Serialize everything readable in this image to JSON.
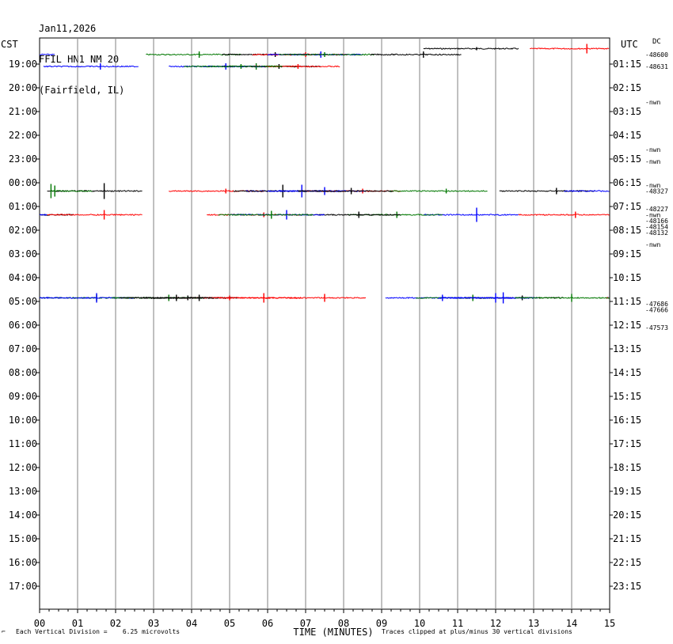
{
  "header": {
    "date": "Jan11,2026",
    "station": "FFIL HN1 NM 20",
    "location": "(Fairfield, IL)"
  },
  "labels": {
    "left_tz": "CST",
    "right_tz": "UTC",
    "offset_label": "DC",
    "corner_mark": "⌐"
  },
  "footer": {
    "scale_note": "Each Vertical Division =    6.25 microvolts",
    "clip_note": "Traces clipped at plus/minus 30 vertical divisions"
  },
  "chart_data": {
    "type": "line",
    "title": "Jan11,2026 FFIL HN1 NM 20 (Fairfield, IL)",
    "xlabel": "TIME (MINUTES)",
    "ylabel": "",
    "x_ticks": [
      "00",
      "01",
      "02",
      "03",
      "04",
      "05",
      "06",
      "07",
      "08",
      "09",
      "10",
      "11",
      "12",
      "13",
      "14",
      "15"
    ],
    "xlim": [
      0,
      15
    ],
    "left_labels": [
      "19:00",
      "20:00",
      "21:00",
      "22:00",
      "23:00",
      "00:00",
      "01:00",
      "02:00",
      "03:00",
      "04:00",
      "05:00",
      "06:00",
      "07:00",
      "08:00",
      "09:00",
      "10:00",
      "11:00",
      "12:00",
      "13:00",
      "14:00",
      "15:00",
      "16:00",
      "17:00"
    ],
    "right_labels": [
      "01:15",
      "02:15",
      "03:15",
      "04:15",
      "05:15",
      "06:15",
      "07:15",
      "08:15",
      "09:15",
      "10:15",
      "11:15",
      "12:15",
      "13:15",
      "14:15",
      "15:15",
      "16:15",
      "17:15",
      "18:15",
      "19:15",
      "20:15",
      "21:15",
      "22:15",
      "23:15"
    ],
    "dc_labels": [
      {
        "row": 0,
        "text": "-48600"
      },
      {
        "row": 2,
        "text": "-48631"
      },
      {
        "row": 8,
        "text": "-nwn"
      },
      {
        "row": 16,
        "text": "-nwn"
      },
      {
        "row": 18,
        "text": "-nwn"
      },
      {
        "row": 22,
        "text": "-nwn"
      },
      {
        "row": 23,
        "text": "-48327"
      },
      {
        "row": 26,
        "text": "-48227"
      },
      {
        "row": 27,
        "text": "-nwn"
      },
      {
        "row": 28,
        "text": "-48166"
      },
      {
        "row": 29,
        "text": "-48154"
      },
      {
        "row": 30,
        "text": "-48132"
      },
      {
        "row": 32,
        "text": "-nwn"
      },
      {
        "row": 42,
        "text": "-47686"
      },
      {
        "row": 43,
        "text": "-47666"
      },
      {
        "row": 46,
        "text": "-47573"
      }
    ],
    "grid": true,
    "colors": [
      "#000000",
      "#ff0000",
      "#0000ff",
      "#007700"
    ],
    "traces": [
      {
        "row": -1,
        "color": "#000000",
        "x0": 10.1,
        "x1": 12.6,
        "spikes": [
          {
            "x": 11.5,
            "a": 2
          }
        ]
      },
      {
        "row": -1,
        "color": "#ff0000",
        "x0": 12.9,
        "x1": 15.0,
        "spikes": [
          {
            "x": 14.4,
            "a": 6
          }
        ]
      },
      {
        "row": 0,
        "color": "#0000ff",
        "x0": 0.0,
        "x1": 0.4,
        "spikes": []
      },
      {
        "row": 0,
        "color": "#007700",
        "x0": 2.8,
        "x1": 5.3,
        "spikes": [
          {
            "x": 4.2,
            "a": 4
          }
        ]
      },
      {
        "row": 0,
        "color": "#000000",
        "x0": 4.8,
        "x1": 7.3,
        "spikes": [
          {
            "x": 6.2,
            "a": 3
          }
        ]
      },
      {
        "row": 0,
        "color": "#ff0000",
        "x0": 5.6,
        "x1": 8.1,
        "spikes": [
          {
            "x": 7.0,
            "a": 3
          }
        ]
      },
      {
        "row": 0,
        "color": "#0000ff",
        "x0": 6.0,
        "x1": 8.5,
        "spikes": [
          {
            "x": 7.4,
            "a": 4
          }
        ]
      },
      {
        "row": 0,
        "color": "#007700",
        "x0": 6.3,
        "x1": 8.8,
        "spikes": [
          {
            "x": 7.5,
            "a": 3
          }
        ]
      },
      {
        "row": 0,
        "color": "#000000",
        "x0": 8.7,
        "x1": 11.1,
        "spikes": [
          {
            "x": 10.1,
            "a": 4
          }
        ]
      },
      {
        "row": 2,
        "color": "#0000ff",
        "x0": 0.1,
        "x1": 2.6,
        "spikes": [
          {
            "x": 1.6,
            "a": 4
          }
        ]
      },
      {
        "row": 2,
        "color": "#007700",
        "x0": 4.3,
        "x1": 6.8,
        "spikes": [
          {
            "x": 5.7,
            "a": 4
          }
        ]
      },
      {
        "row": 2,
        "color": "#000000",
        "x0": 4.8,
        "x1": 7.4,
        "spikes": [
          {
            "x": 6.3,
            "a": 3
          }
        ]
      },
      {
        "row": 2,
        "color": "#ff0000",
        "x0": 5.4,
        "x1": 7.9,
        "spikes": [
          {
            "x": 6.8,
            "a": 3
          }
        ]
      },
      {
        "row": 2,
        "color": "#0000ff",
        "x0": 3.4,
        "x1": 6.0,
        "spikes": [
          {
            "x": 4.9,
            "a": 4
          }
        ]
      },
      {
        "row": 2,
        "color": "#007700",
        "x0": 3.8,
        "x1": 6.4,
        "spikes": [
          {
            "x": 5.3,
            "a": 3
          }
        ]
      },
      {
        "row": 23,
        "color": "#000000",
        "x0": 0.2,
        "x1": 2.7,
        "spikes": [
          {
            "x": 1.7,
            "a": 10
          }
        ]
      },
      {
        "row": 23,
        "color": "#ff0000",
        "x0": 3.4,
        "x1": 5.9,
        "spikes": [
          {
            "x": 4.9,
            "a": 3
          }
        ]
      },
      {
        "row": 23,
        "color": "#0000ff",
        "x0": 5.4,
        "x1": 7.9,
        "spikes": [
          {
            "x": 6.9,
            "a": 8
          }
        ]
      },
      {
        "row": 23,
        "color": "#000000",
        "x0": 5.1,
        "x1": 7.6,
        "spikes": [
          {
            "x": 6.4,
            "a": 8
          }
        ]
      },
      {
        "row": 23,
        "color": "#ff0000",
        "x0": 7.0,
        "x1": 9.5,
        "spikes": [
          {
            "x": 8.5,
            "a": 3
          }
        ]
      },
      {
        "row": 23,
        "color": "#0000ff",
        "x0": 6.0,
        "x1": 8.6,
        "spikes": [
          {
            "x": 7.5,
            "a": 5
          }
        ]
      },
      {
        "row": 23,
        "color": "#007700",
        "x0": 0.3,
        "x1": 1.4,
        "spikes": [
          {
            "x": 0.3,
            "a": 9
          },
          {
            "x": 0.4,
            "a": 7
          }
        ]
      },
      {
        "row": 23,
        "color": "#007700",
        "x0": 9.2,
        "x1": 11.8,
        "spikes": [
          {
            "x": 10.7,
            "a": 3
          }
        ]
      },
      {
        "row": 23,
        "color": "#000000",
        "x0": 6.8,
        "x1": 9.3,
        "spikes": [
          {
            "x": 8.2,
            "a": 4
          }
        ]
      },
      {
        "row": 23,
        "color": "#000000",
        "x0": 12.1,
        "x1": 14.6,
        "spikes": [
          {
            "x": 13.6,
            "a": 4
          }
        ]
      },
      {
        "row": 23,
        "color": "#0000ff",
        "x0": 13.8,
        "x1": 15.0,
        "spikes": []
      },
      {
        "row": 27,
        "color": "#000000",
        "x0": 0.0,
        "x1": 0.9,
        "spikes": []
      },
      {
        "row": 27,
        "color": "#ff0000",
        "x0": 0.2,
        "x1": 2.7,
        "spikes": [
          {
            "x": 1.7,
            "a": 6
          }
        ]
      },
      {
        "row": 27,
        "color": "#0000ff",
        "x0": 0.0,
        "x1": 0.2,
        "spikes": []
      },
      {
        "row": 27,
        "color": "#0000ff",
        "x0": 10.1,
        "x1": 12.6,
        "spikes": [
          {
            "x": 11.5,
            "a": 9
          }
        ]
      },
      {
        "row": 27,
        "color": "#ff0000",
        "x0": 12.6,
        "x1": 15.0,
        "spikes": [
          {
            "x": 14.1,
            "a": 4
          }
        ]
      },
      {
        "row": 27,
        "color": "#007700",
        "x0": 8.1,
        "x1": 10.6,
        "spikes": [
          {
            "x": 9.4,
            "a": 4
          }
        ]
      },
      {
        "row": 27,
        "color": "#000000",
        "x0": 7.0,
        "x1": 9.5,
        "spikes": [
          {
            "x": 8.4,
            "a": 4
          }
        ]
      },
      {
        "row": 27,
        "color": "#ff0000",
        "x0": 4.4,
        "x1": 6.9,
        "spikes": [
          {
            "x": 5.9,
            "a": 3
          }
        ]
      },
      {
        "row": 27,
        "color": "#0000ff",
        "x0": 5.0,
        "x1": 7.5,
        "spikes": [
          {
            "x": 6.5,
            "a": 6
          }
        ]
      },
      {
        "row": 27,
        "color": "#007700",
        "x0": 4.7,
        "x1": 7.2,
        "spikes": [
          {
            "x": 6.1,
            "a": 5
          }
        ]
      },
      {
        "row": 41,
        "color": "#0000ff",
        "x0": 0.0,
        "x1": 0.6,
        "spikes": []
      },
      {
        "row": 41,
        "color": "#0000ff",
        "x0": 14.9,
        "x1": 15.0,
        "spikes": []
      },
      {
        "row": 41,
        "color": "#007700",
        "x0": 0.0,
        "x1": 2.5,
        "spikes": [
          {
            "x": 1.5,
            "a": 4
          }
        ]
      },
      {
        "row": 41,
        "color": "#000000",
        "x0": 2.4,
        "x1": 4.9,
        "spikes": [
          {
            "x": 3.9,
            "a": 3
          }
        ]
      },
      {
        "row": 41,
        "color": "#ff0000",
        "x0": 3.6,
        "x1": 6.1,
        "spikes": [
          {
            "x": 5.0,
            "a": 3
          }
        ]
      },
      {
        "row": 41,
        "color": "#0000ff",
        "x0": 9.1,
        "x1": 11.6,
        "spikes": [
          {
            "x": 10.6,
            "a": 4
          }
        ]
      },
      {
        "row": 41,
        "color": "#007700",
        "x0": 9.9,
        "x1": 12.4,
        "spikes": [
          {
            "x": 11.4,
            "a": 4
          }
        ]
      },
      {
        "row": 41,
        "color": "#000000",
        "x0": 11.2,
        "x1": 13.8,
        "spikes": [
          {
            "x": 12.7,
            "a": 3
          }
        ]
      },
      {
        "row": 41,
        "color": "#ff0000",
        "x0": 14.9,
        "x1": 15.0,
        "spikes": []
      },
      {
        "row": 41,
        "color": "#0000ff",
        "x0": 0.0,
        "x1": 2.5,
        "spikes": [
          {
            "x": 1.5,
            "a": 6
          }
        ]
      },
      {
        "row": 41,
        "color": "#007700",
        "x0": 1.9,
        "x1": 4.4,
        "spikes": [
          {
            "x": 3.4,
            "a": 4
          }
        ]
      },
      {
        "row": 41,
        "color": "#000000",
        "x0": 2.7,
        "x1": 5.2,
        "spikes": [
          {
            "x": 4.2,
            "a": 4
          }
        ]
      },
      {
        "row": 41,
        "color": "#ff0000",
        "x0": 4.3,
        "x1": 6.9,
        "spikes": [
          {
            "x": 5.9,
            "a": 6
          }
        ]
      },
      {
        "row": 41,
        "color": "#0000ff",
        "x0": 10.6,
        "x1": 13.1,
        "spikes": [
          {
            "x": 12.2,
            "a": 7
          }
        ]
      },
      {
        "row": 41,
        "color": "#000000",
        "x0": 2.1,
        "x1": 4.6,
        "spikes": [
          {
            "x": 3.6,
            "a": 4
          }
        ]
      },
      {
        "row": 41,
        "color": "#ff0000",
        "x0": 6.0,
        "x1": 8.6,
        "spikes": [
          {
            "x": 7.5,
            "a": 5
          }
        ]
      },
      {
        "row": 41,
        "color": "#0000ff",
        "x0": 10.5,
        "x1": 13.0,
        "spikes": [
          {
            "x": 12.0,
            "a": 6
          }
        ]
      },
      {
        "row": 41,
        "color": "#007700",
        "x0": 12.5,
        "x1": 15.0,
        "spikes": [
          {
            "x": 14.0,
            "a": 5
          }
        ]
      }
    ]
  }
}
